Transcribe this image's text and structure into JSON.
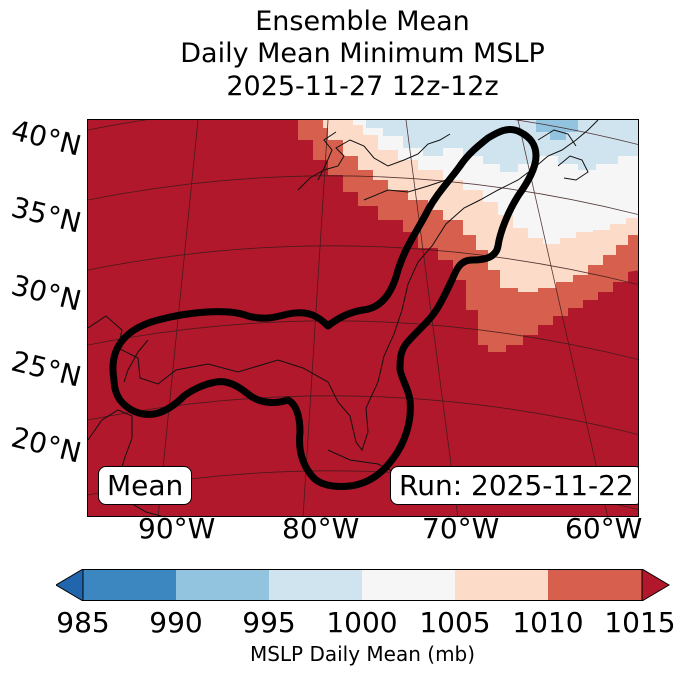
{
  "title": {
    "line1": "Ensemble Mean",
    "line2": "Daily Mean Minimum MSLP",
    "line3": "2025-11-27 12z-12z"
  },
  "map": {
    "lat_labels": [
      "40°N",
      "35°N",
      "30°N",
      "25°N",
      "20°N"
    ],
    "lon_labels": [
      "90°W",
      "80°W",
      "70°W",
      "60°W"
    ],
    "mean_box": "Mean",
    "run_box": "Run: 2025-11-22",
    "legend_levels": [
      {
        "range": "985-990",
        "color": "#3d87c0"
      },
      {
        "range": "990-995",
        "color": "#93c4df"
      },
      {
        "range": "995-1000",
        "color": "#d0e4ef"
      },
      {
        "range": "1000-1005",
        "color": "#f6f6f6"
      },
      {
        "range": "1005-1010",
        "color": "#fcdbc8"
      },
      {
        "range": "1010-1015",
        "color": "#d6604d"
      },
      {
        "range": ">1015",
        "color": "#b2182b"
      }
    ],
    "outline_color": "#000000"
  },
  "colorbar": {
    "ticks": [
      "985",
      "990",
      "995",
      "1000",
      "1005",
      "1010",
      "1015"
    ],
    "label": "MSLP Daily Mean (mb)",
    "under_color": "#2166ac",
    "over_color": "#b2182b"
  }
}
